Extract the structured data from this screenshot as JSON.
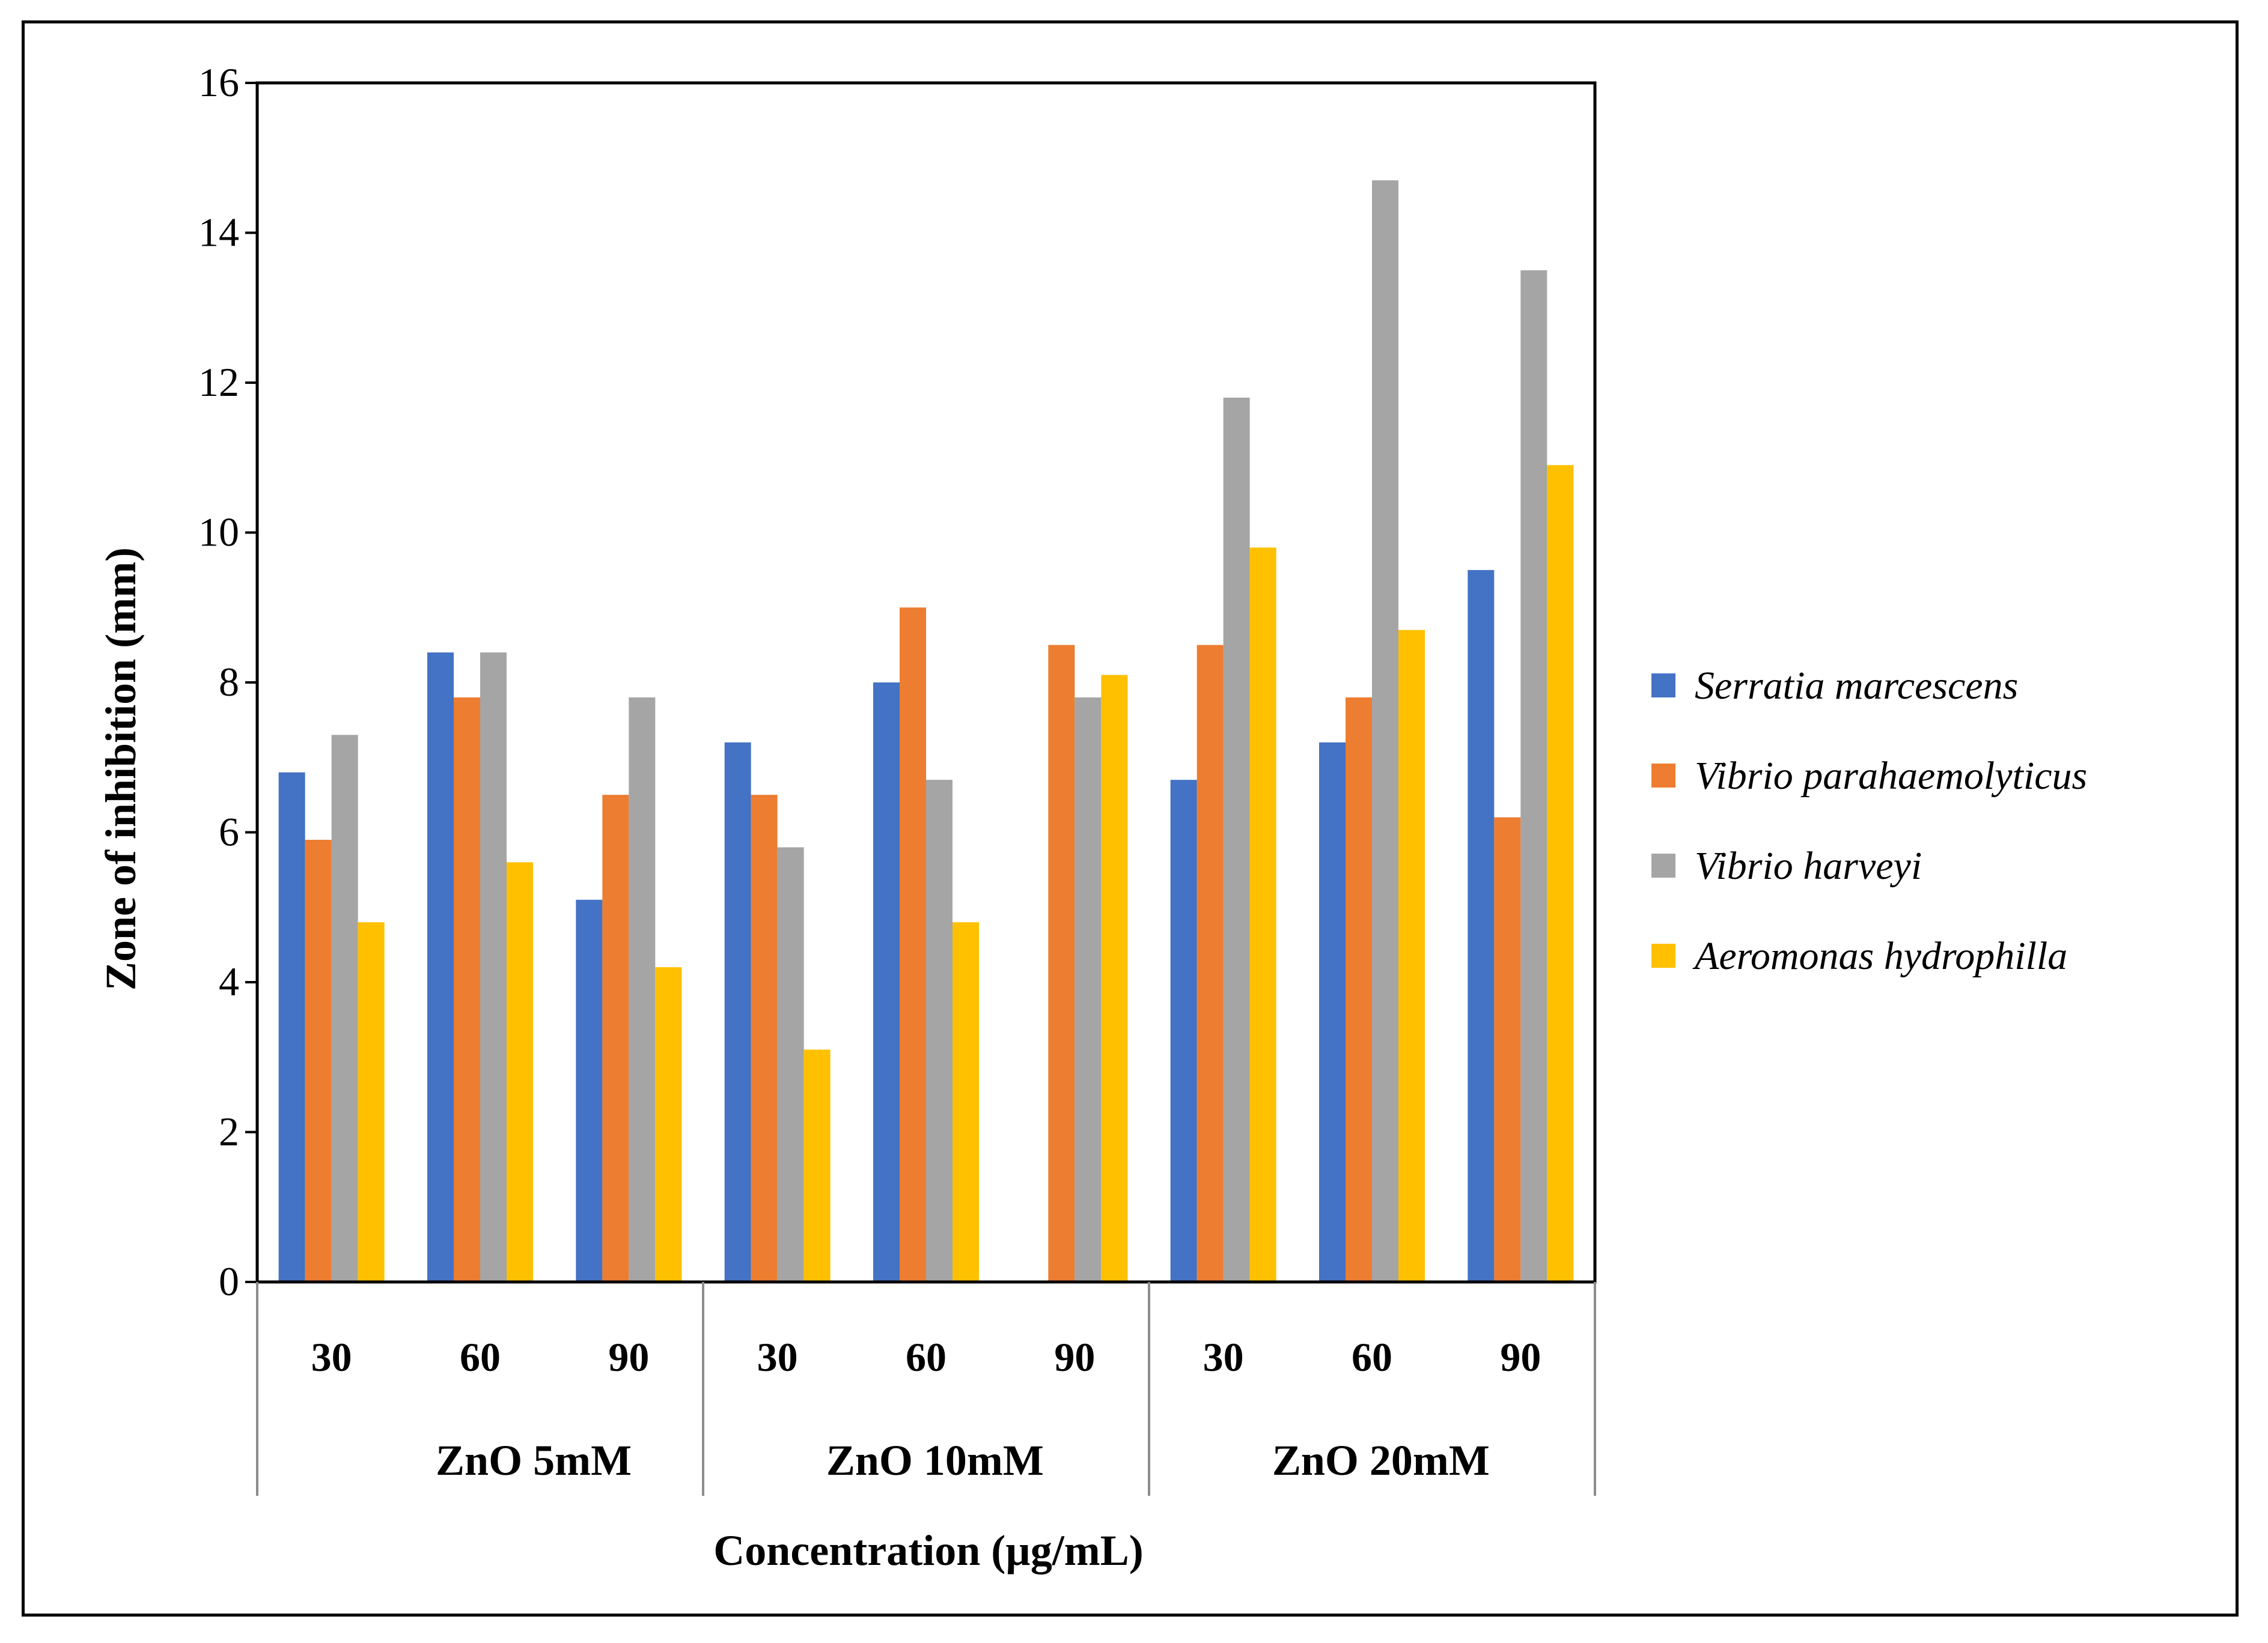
{
  "chart_data": {
    "type": "bar",
    "title": "",
    "ylabel": "Zone of inhibition (mm)",
    "xlabel": "Concentration (µg/mL)",
    "ylim": [
      0,
      16
    ],
    "yticks": [
      0,
      2,
      4,
      6,
      8,
      10,
      12,
      14,
      16
    ],
    "grid": false,
    "legend_position": "right",
    "groups": [
      {
        "label": "ZnO 5mM",
        "categories": [
          "30",
          "60",
          "90"
        ]
      },
      {
        "label": "ZnO 10mM",
        "categories": [
          "30",
          "60",
          "90"
        ]
      },
      {
        "label": "ZnO 20mM",
        "categories": [
          "30",
          "60",
          "90"
        ]
      }
    ],
    "categories": [
      "30",
      "60",
      "90",
      "30",
      "60",
      "90",
      "30",
      "60",
      "90"
    ],
    "series": [
      {
        "name": "Serratia marcescens",
        "color": "#4472C4",
        "values": [
          6.8,
          8.4,
          5.1,
          7.2,
          8.0,
          0,
          6.7,
          7.2,
          9.5
        ]
      },
      {
        "name": "Vibrio parahaemolyticus",
        "color": "#ED7D31",
        "values": [
          5.9,
          7.8,
          6.5,
          6.5,
          9.0,
          8.5,
          8.5,
          7.8,
          6.2
        ]
      },
      {
        "name": "Vibrio harveyi",
        "color": "#A5A5A5",
        "values": [
          7.3,
          8.4,
          7.8,
          5.8,
          6.7,
          7.8,
          11.8,
          14.7,
          13.5
        ]
      },
      {
        "name": "Aeromonas hydrophilla",
        "color": "#FFC000",
        "values": [
          4.8,
          5.6,
          4.2,
          3.1,
          4.8,
          8.1,
          9.8,
          8.7,
          10.9
        ]
      }
    ]
  }
}
